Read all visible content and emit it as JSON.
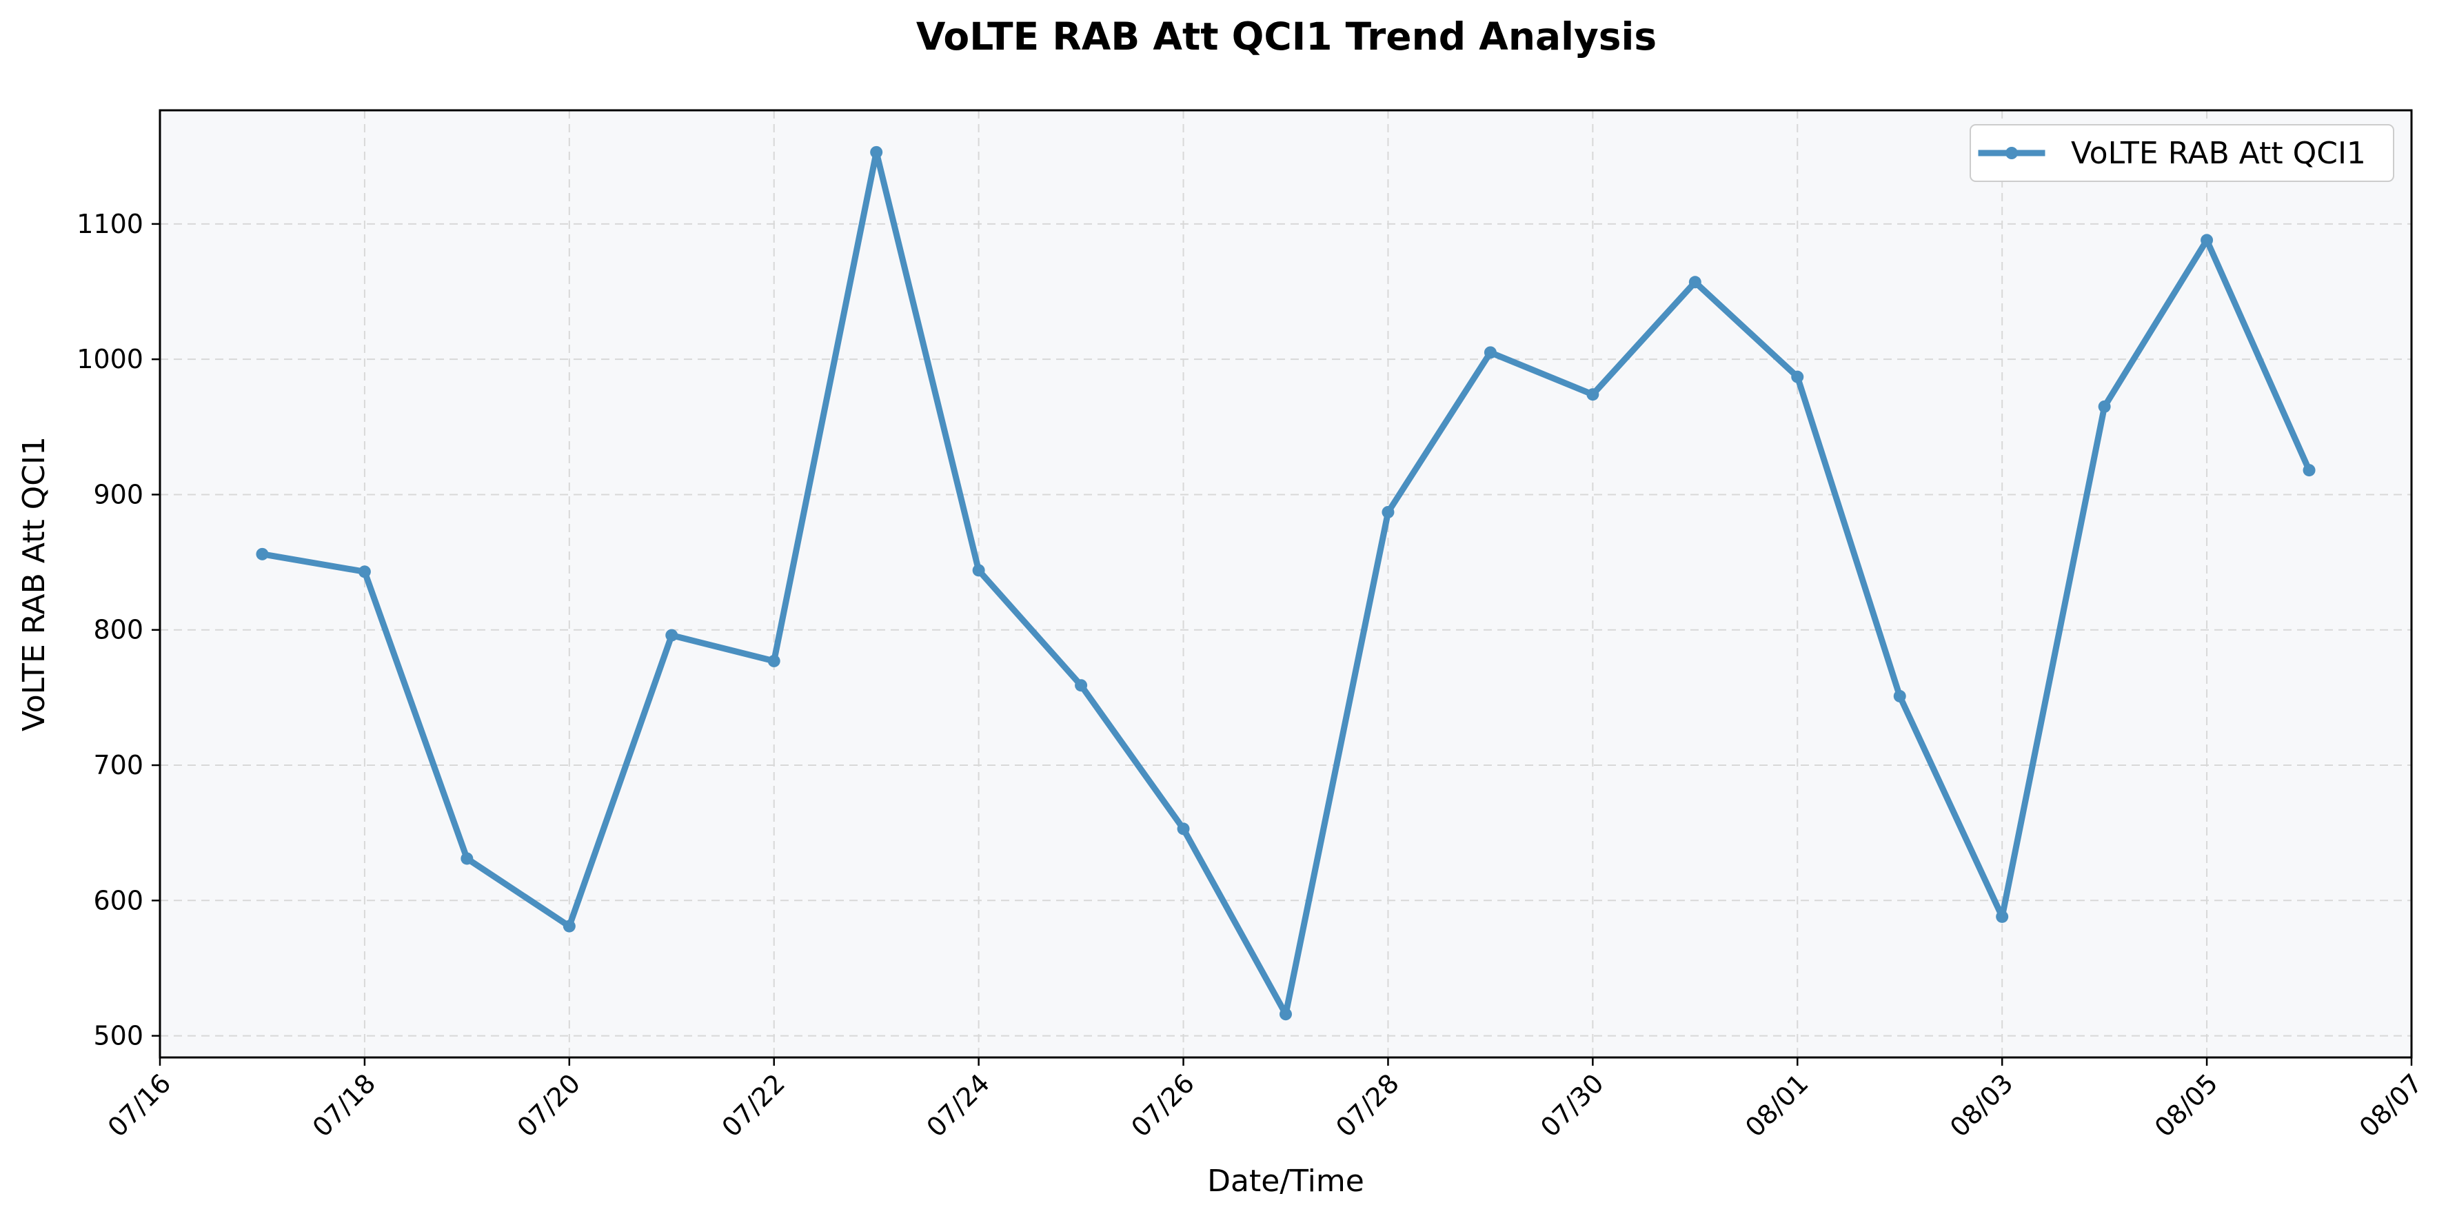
{
  "chart_data": {
    "type": "line",
    "title": "VoLTE RAB Att QCI1 Trend Analysis",
    "xlabel": "Date/Time",
    "ylabel": "VoLTE RAB Att QCI1",
    "x_ticks": [
      "07/16",
      "07/18",
      "07/20",
      "07/22",
      "07/24",
      "07/26",
      "07/28",
      "07/30",
      "08/01",
      "08/03",
      "08/05",
      "08/07"
    ],
    "y_ticks": [
      "500",
      "600",
      "700",
      "800",
      "900",
      "1000",
      "1100"
    ],
    "xlim": [
      "07/16",
      "08/07"
    ],
    "ylim": [
      484,
      1184
    ],
    "grid": true,
    "legend_position": "top-right",
    "colors": {
      "line": "#4a8fc0",
      "plot_bg": "#f7f8fa",
      "grid": "#d8d8d8"
    },
    "series": [
      {
        "name": "VoLTE RAB Att QCI1",
        "x": [
          "07/17",
          "07/18",
          "07/19",
          "07/20",
          "07/21",
          "07/22",
          "07/23",
          "07/24",
          "07/25",
          "07/26",
          "07/27",
          "07/28",
          "07/29",
          "07/30",
          "07/31",
          "08/01",
          "08/02",
          "08/03",
          "08/04",
          "08/05",
          "08/06"
        ],
        "values": [
          856,
          843,
          631,
          581,
          796,
          777,
          1153,
          844,
          759,
          653,
          516,
          887,
          1005,
          974,
          1057,
          987,
          751,
          588,
          965,
          1088,
          918
        ]
      }
    ]
  }
}
